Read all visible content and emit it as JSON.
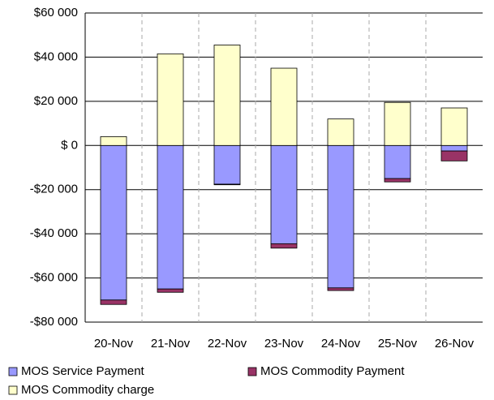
{
  "chart_data": {
    "type": "stacked_bar",
    "categories": [
      "20-Nov",
      "21-Nov",
      "22-Nov",
      "23-Nov",
      "24-Nov",
      "25-Nov",
      "26-Nov"
    ],
    "series": [
      {
        "name": "MOS Service Payment",
        "color": "#9999ff",
        "values": [
          -70000,
          -65000,
          -17500,
          -44500,
          -64500,
          -15000,
          -2500
        ]
      },
      {
        "name": "MOS Commodity Payment",
        "color": "#993366",
        "values": [
          -2000,
          -1500,
          -300,
          -2000,
          -1200,
          -1500,
          -4500
        ]
      },
      {
        "name": "MOS Commodity charge",
        "color": "#ffffcc",
        "values": [
          4000,
          41500,
          45500,
          35000,
          12000,
          19500,
          17000
        ]
      }
    ],
    "ylim": [
      -80000,
      60000
    ],
    "yticks": [
      {
        "value": -80000,
        "label": "-$80 000"
      },
      {
        "value": -60000,
        "label": "-$60 000"
      },
      {
        "value": -40000,
        "label": "-$40 000"
      },
      {
        "value": -20000,
        "label": "-$20 000"
      },
      {
        "value": 0,
        "label": "$ 0"
      },
      {
        "value": 20000,
        "label": "$20 000"
      },
      {
        "value": 40000,
        "label": "$40 000"
      },
      {
        "value": 60000,
        "label": "$60 000"
      }
    ],
    "grid": true
  }
}
